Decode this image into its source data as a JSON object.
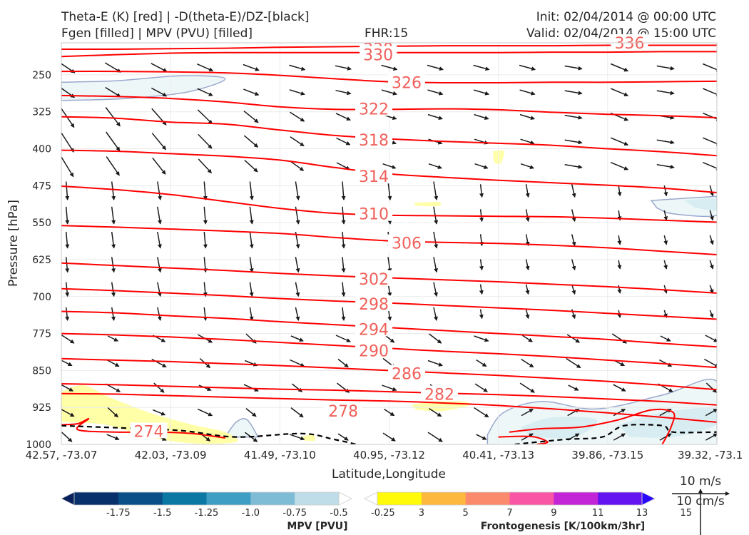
{
  "header": {
    "title_line1": "Theta-E (K) [red] | -D(theta-E)/DZ-[black]",
    "title_line2": "Fgen [filled] | MPV (PVU) [filled]",
    "fhr": "FHR:15",
    "init": "Init: 02/04/2014 @ 00:00 UTC",
    "valid": "Valid: 02/04/2014 @ 15:00 UTC"
  },
  "colors": {
    "theta_e": "#ff0000",
    "contour_label": "#f0605a",
    "gradient_zero": "#000000",
    "fgen_low": "#ffff9e",
    "mpv_neg_light": "#eef7f8",
    "mpv_neg_mid": "#d8edf2",
    "mpv_outline": "#9aa8cc",
    "axis_frame": "#c8c8c8",
    "wind_arrow": "#1a1a1a"
  },
  "chart_data": {
    "type": "cross-section",
    "xlabel": "Latitude,Longitude",
    "ylabel": "Pressure [hPa]",
    "x_ticks": [
      "42.57, -73.07",
      "42.03, -73.09",
      "41.49, -73.10",
      "40.95, -73.12",
      "40.41, -73.13",
      "39.86, -73.15",
      "39.32, -73.1"
    ],
    "y_ticks": [
      250,
      325,
      400,
      475,
      550,
      625,
      700,
      775,
      850,
      925,
      1000
    ],
    "ylim": [
      1000,
      185
    ],
    "xlim": [
      0,
      6
    ],
    "theta_e_contours": [
      {
        "level": 338,
        "p": [
          198,
          198,
          197,
          196,
          194,
          193,
          192,
          191,
          191,
          191,
          190,
          190,
          190
        ]
      },
      {
        "level": 330,
        "p": [
          213,
          209,
          206,
          205,
          205,
          205,
          205,
          205,
          205,
          204,
          204,
          203,
          203
        ]
      },
      {
        "level": 326,
        "p": [
          243,
          243,
          244,
          246,
          251,
          258,
          264,
          266,
          266,
          265,
          265,
          264,
          263
        ]
      },
      {
        "level": 322,
        "p": [
          292,
          294,
          298,
          305,
          315,
          320,
          320,
          319,
          321,
          326,
          330,
          333,
          337
        ]
      },
      {
        "level": 318,
        "p": [
          335,
          338,
          346,
          350,
          362,
          373,
          380,
          385,
          389,
          393,
          400,
          406,
          414
        ]
      },
      {
        "level": 314,
        "p": [
          403,
          405,
          410,
          415,
          423,
          438,
          451,
          458,
          464,
          469,
          474,
          480,
          489
        ]
      },
      {
        "level": 310,
        "p": [
          476,
          483,
          493,
          507,
          521,
          531,
          535,
          536,
          537,
          538,
          541,
          545,
          549
        ]
      },
      {
        "level": 306,
        "p": [
          556,
          559,
          563,
          567,
          572,
          580,
          587,
          590,
          592,
          596,
          601,
          608,
          615
        ]
      },
      {
        "level": 302,
        "p": [
          632,
          637,
          642,
          647,
          653,
          658,
          662,
          666,
          670,
          675,
          680,
          686,
          693
        ]
      },
      {
        "level": 298,
        "p": [
          684,
          688,
          693,
          698,
          704,
          709,
          713,
          718,
          723,
          728,
          734,
          740,
          746
        ]
      },
      {
        "level": 294,
        "p": [
          730,
          733,
          739,
          744,
          751,
          757,
          763,
          769,
          775,
          781,
          787,
          795,
          802
        ]
      },
      {
        "level": 290,
        "p": [
          775,
          778,
          782,
          787,
          793,
          799,
          805,
          811,
          816,
          822,
          829,
          836,
          844
        ]
      },
      {
        "level": 286,
        "p": [
          826,
          829,
          832,
          836,
          840,
          845,
          850,
          855,
          860,
          866,
          872,
          880,
          889
        ]
      },
      {
        "level": 282,
        "p": [
          877,
          879,
          882,
          885,
          888,
          890,
          893,
          896,
          899,
          903,
          908,
          913,
          920
        ]
      },
      {
        "level": 278,
        "p": [
          897,
          898,
          901,
          904,
          907,
          910,
          912,
          916,
          921,
          928,
          936,
          945,
          955
        ]
      }
    ],
    "theta_e_labels": [
      {
        "text": "338",
        "x": 2.9,
        "p": 197
      },
      {
        "text": "330",
        "x": 2.9,
        "p": 209
      },
      {
        "text": "336",
        "x": 5.2,
        "p": 185
      },
      {
        "text": "326",
        "x": 3.16,
        "p": 265
      },
      {
        "text": "322",
        "x": 2.86,
        "p": 319
      },
      {
        "text": "318",
        "x": 2.86,
        "p": 382
      },
      {
        "text": "314",
        "x": 2.86,
        "p": 456
      },
      {
        "text": "310",
        "x": 2.86,
        "p": 532
      },
      {
        "text": "306",
        "x": 3.16,
        "p": 591
      },
      {
        "text": "302",
        "x": 2.86,
        "p": 664
      },
      {
        "text": "298",
        "x": 2.86,
        "p": 715
      },
      {
        "text": "294",
        "x": 2.86,
        "p": 766
      },
      {
        "text": "290",
        "x": 2.86,
        "p": 810
      },
      {
        "text": "286",
        "x": 3.16,
        "p": 856
      },
      {
        "text": "282",
        "x": 3.46,
        "p": 898
      },
      {
        "text": "278",
        "x": 2.58,
        "p": 932
      },
      {
        "text": "274",
        "x": 0.8,
        "p": 973
      }
    ],
    "mpv_colorbar": {
      "label": "MPV [PVU]",
      "ticks": [
        "-1.75",
        "-1.5",
        "-1.25",
        "-1.0",
        "-0.75",
        "-0.5",
        "-0.25"
      ],
      "colors": [
        "#08205b",
        "#08306b",
        "#0a4f87",
        "#0b77a3",
        "#3f9ec3",
        "#7ebcd6",
        "#bedde8",
        "#ffffff"
      ]
    },
    "fgen_colorbar": {
      "label": "Frontogenesis [K/100km/3hr]",
      "ticks": [
        "3",
        "5",
        "7",
        "9",
        "11",
        "13",
        "15"
      ],
      "colors": [
        "#ffffff",
        "#fff90a",
        "#fdb93f",
        "#fb8a6c",
        "#f956a5",
        "#c326d6",
        "#6413f1",
        "#2a09ff"
      ]
    },
    "wind_key": {
      "label_top": "10 m/s",
      "label_bottom": "10 cm/s"
    }
  }
}
